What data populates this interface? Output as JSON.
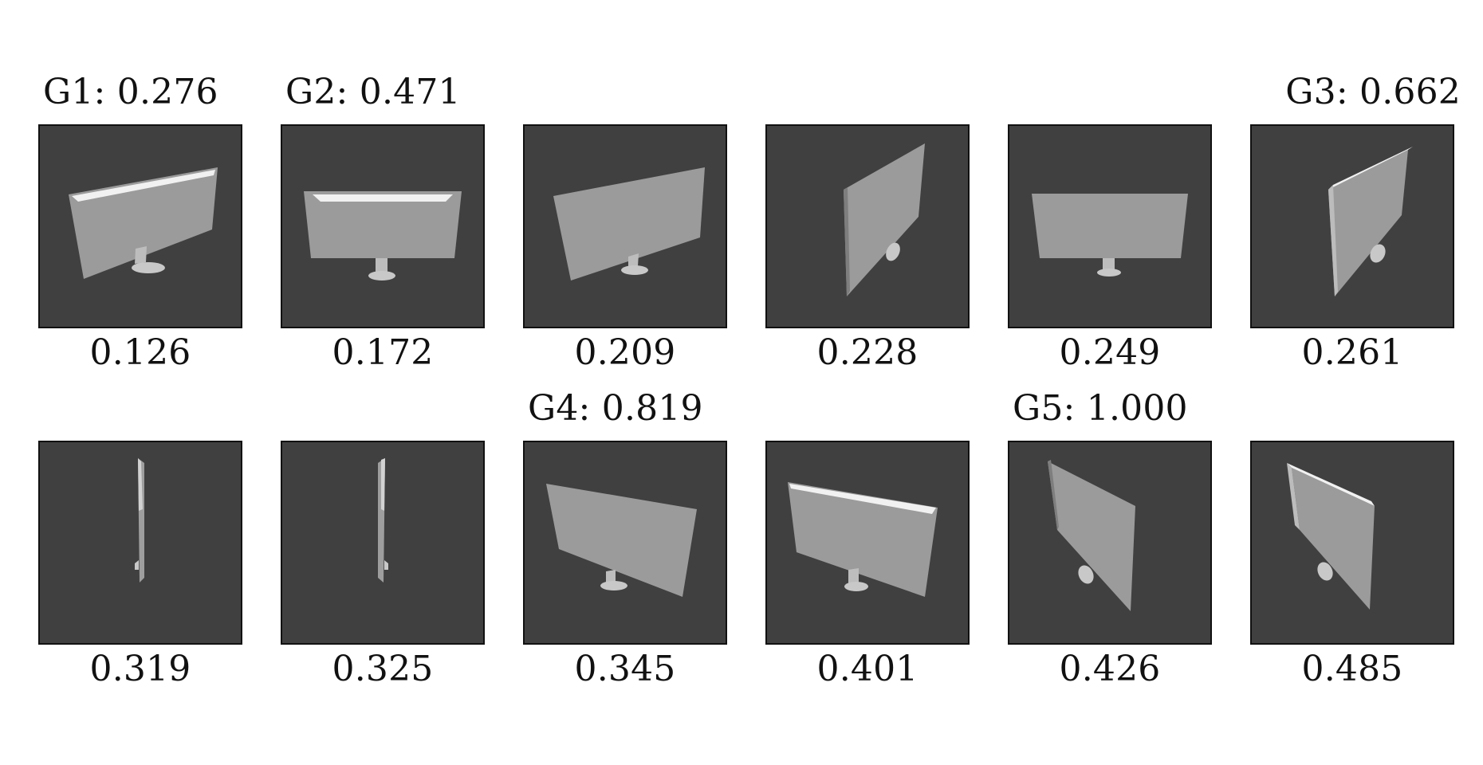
{
  "colors": {
    "background": "#ffffff",
    "thumbnail_background": "#404040",
    "screen_gray": "#9b9b9b",
    "highlight": "#f1f1f1",
    "stand_gray": "#c8c8c8",
    "border": "#111111"
  },
  "panels": [
    {
      "score": "0.126",
      "group_label": "G1: 0.276",
      "group_align": "left"
    },
    {
      "score": "0.172",
      "group_label": "G2: 0.471",
      "group_align": "left"
    },
    {
      "score": "0.209",
      "group_label": "",
      "group_align": ""
    },
    {
      "score": "0.228",
      "group_label": "",
      "group_align": ""
    },
    {
      "score": "0.249",
      "group_label": "",
      "group_align": ""
    },
    {
      "score": "0.261",
      "group_label": "G3: 0.662",
      "group_align": "right"
    },
    {
      "score": "0.319",
      "group_label": "",
      "group_align": ""
    },
    {
      "score": "0.325",
      "group_label": "",
      "group_align": ""
    },
    {
      "score": "0.345",
      "group_label": "G4: 0.819",
      "group_align": "left"
    },
    {
      "score": "0.401",
      "group_label": "",
      "group_align": ""
    },
    {
      "score": "0.426",
      "group_label": "G5: 1.000",
      "group_align": "left"
    },
    {
      "score": "0.485",
      "group_label": "",
      "group_align": ""
    }
  ]
}
